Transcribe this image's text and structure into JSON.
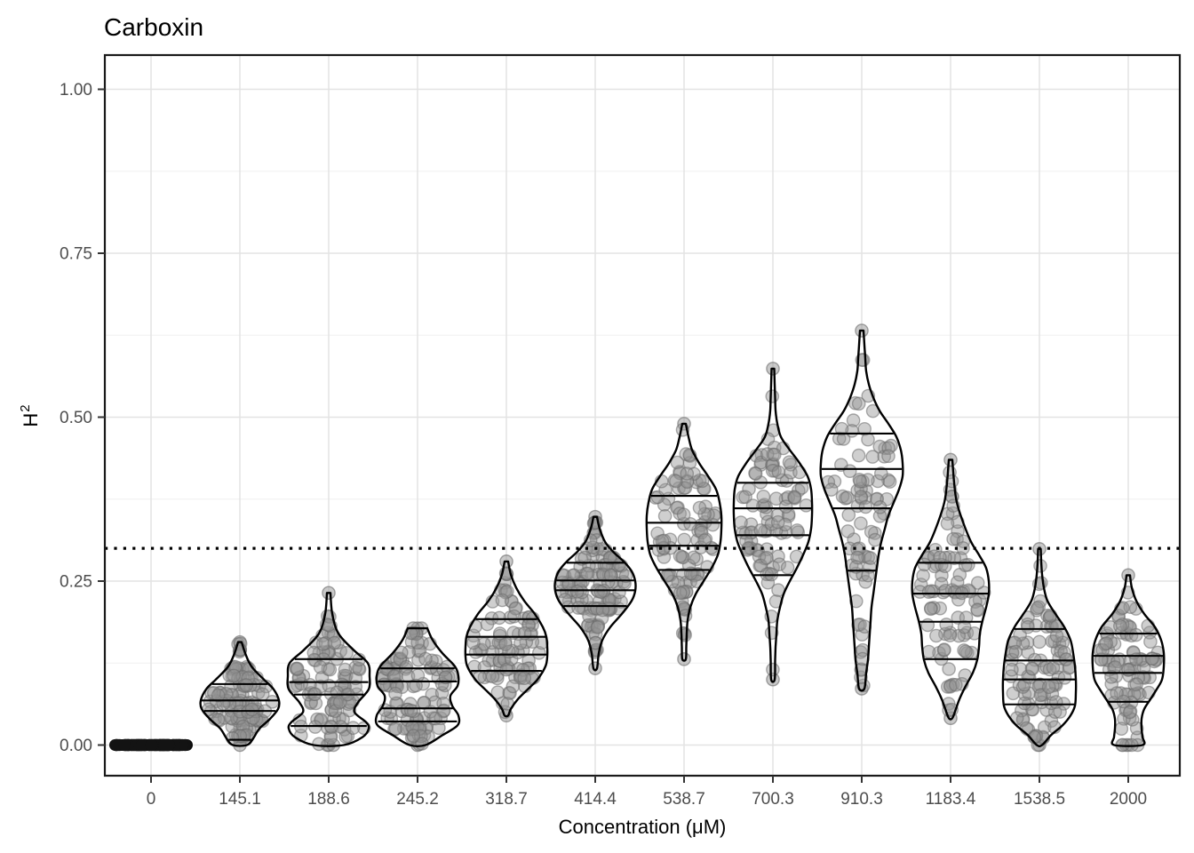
{
  "title": "Carboxin",
  "axes": {
    "x_title": "Concentration (μM)",
    "y_title": {
      "base": "H",
      "superscript": "2"
    },
    "y_ticks": [
      "0.00",
      "0.25",
      "0.50",
      "0.75",
      "1.00"
    ],
    "y_tick_values": [
      0,
      0.25,
      0.5,
      0.75,
      1.0
    ],
    "y_minor_values": [
      0.125,
      0.375,
      0.625,
      0.875
    ]
  },
  "reference_line": {
    "value": 0.3,
    "style": "dotted",
    "color": "#000000"
  },
  "colors": {
    "background": "#ffffff",
    "panel_border": "#1a1a1a",
    "grid_major": "#e3e3e3",
    "grid_minor": "#f0f0f0",
    "violin_outline": "#000000",
    "violin_fill": "#ffffff",
    "quantile_line": "#000000",
    "point_fill": "#949494",
    "point_stroke": "#6b6b6b",
    "tick_mark": "#333333",
    "tick_label": "#4d4d4d",
    "zero_group": "#0a0a0a"
  },
  "chart_data": {
    "type": "violin",
    "title": "Carboxin",
    "xlabel": "Concentration (μM)",
    "ylabel": "H^2",
    "ylim": [
      0,
      1.05
    ],
    "grid": true,
    "reference_line_y": 0.3,
    "quantiles_drawn": [
      0.2,
      0.4,
      0.6,
      0.8
    ],
    "categories": [
      "0",
      "145.1",
      "188.6",
      "245.2",
      "318.7",
      "414.4",
      "538.7",
      "700.3",
      "910.3",
      "1183.4",
      "1538.5",
      "2000"
    ],
    "violins": [
      {
        "label": "0",
        "flat": true,
        "min": 0.0,
        "max": 0.0,
        "quantiles": [
          0,
          0,
          0,
          0
        ],
        "n_points": 70,
        "profile": [
          [
            0.0,
            47
          ]
        ]
      },
      {
        "label": "145.1",
        "flat": false,
        "min": 0.0,
        "max": 0.157,
        "quantiles": [
          0.008,
          0.052,
          0.068,
          0.093
        ],
        "n_points": 115,
        "profile": [
          [
            0.0,
            8
          ],
          [
            0.01,
            15
          ],
          [
            0.025,
            22
          ],
          [
            0.04,
            34
          ],
          [
            0.055,
            43
          ],
          [
            0.068,
            44
          ],
          [
            0.085,
            38
          ],
          [
            0.1,
            27
          ],
          [
            0.12,
            13
          ],
          [
            0.14,
            6
          ],
          [
            0.157,
            2
          ]
        ]
      },
      {
        "label": "188.6",
        "flat": false,
        "min": 0.0,
        "max": 0.232,
        "quantiles": [
          0.029,
          0.077,
          0.096,
          0.131
        ],
        "n_points": 105,
        "profile": [
          [
            0.0,
            17
          ],
          [
            0.012,
            38
          ],
          [
            0.025,
            45
          ],
          [
            0.035,
            42
          ],
          [
            0.05,
            29
          ],
          [
            0.065,
            33
          ],
          [
            0.085,
            45
          ],
          [
            0.105,
            46
          ],
          [
            0.125,
            44
          ],
          [
            0.145,
            28
          ],
          [
            0.17,
            11
          ],
          [
            0.2,
            4
          ],
          [
            0.232,
            2
          ]
        ]
      },
      {
        "label": "245.2",
        "flat": false,
        "min": 0.0,
        "max": 0.178,
        "quantiles": [
          0.036,
          0.056,
          0.097,
          0.117
        ],
        "n_points": 115,
        "profile": [
          [
            0.0,
            9
          ],
          [
            0.015,
            28
          ],
          [
            0.03,
            45
          ],
          [
            0.045,
            46
          ],
          [
            0.06,
            39
          ],
          [
            0.075,
            37
          ],
          [
            0.09,
            45
          ],
          [
            0.105,
            46
          ],
          [
            0.12,
            42
          ],
          [
            0.14,
            28
          ],
          [
            0.16,
            17
          ],
          [
            0.178,
            11
          ]
        ]
      },
      {
        "label": "318.7",
        "flat": false,
        "min": 0.045,
        "max": 0.28,
        "quantiles": [
          0.113,
          0.138,
          0.165,
          0.192
        ],
        "n_points": 95,
        "profile": [
          [
            0.045,
            2
          ],
          [
            0.055,
            5
          ],
          [
            0.07,
            13
          ],
          [
            0.085,
            24
          ],
          [
            0.1,
            35
          ],
          [
            0.12,
            44
          ],
          [
            0.135,
            46
          ],
          [
            0.15,
            46
          ],
          [
            0.165,
            45
          ],
          [
            0.18,
            41
          ],
          [
            0.2,
            32
          ],
          [
            0.22,
            20
          ],
          [
            0.24,
            11
          ],
          [
            0.26,
            5
          ],
          [
            0.28,
            2
          ]
        ]
      },
      {
        "label": "414.4",
        "flat": false,
        "min": 0.117,
        "max": 0.348,
        "quantiles": [
          0.212,
          0.236,
          0.251,
          0.278
        ],
        "n_points": 125,
        "profile": [
          [
            0.117,
            2
          ],
          [
            0.14,
            4
          ],
          [
            0.16,
            8
          ],
          [
            0.18,
            17
          ],
          [
            0.2,
            30
          ],
          [
            0.22,
            41
          ],
          [
            0.235,
            45
          ],
          [
            0.25,
            45
          ],
          [
            0.265,
            41
          ],
          [
            0.28,
            32
          ],
          [
            0.295,
            20
          ],
          [
            0.31,
            11
          ],
          [
            0.33,
            5
          ],
          [
            0.348,
            2
          ]
        ]
      },
      {
        "label": "538.7",
        "flat": false,
        "min": 0.131,
        "max": 0.49,
        "quantiles": [
          0.267,
          0.304,
          0.339,
          0.38
        ],
        "n_points": 100,
        "profile": [
          [
            0.131,
            2
          ],
          [
            0.15,
            2.5
          ],
          [
            0.17,
            3
          ],
          [
            0.19,
            4
          ],
          [
            0.21,
            7
          ],
          [
            0.23,
            13
          ],
          [
            0.25,
            22
          ],
          [
            0.27,
            31
          ],
          [
            0.29,
            38
          ],
          [
            0.31,
            41
          ],
          [
            0.33,
            42
          ],
          [
            0.35,
            42
          ],
          [
            0.37,
            40
          ],
          [
            0.39,
            36
          ],
          [
            0.41,
            27
          ],
          [
            0.43,
            17
          ],
          [
            0.45,
            9
          ],
          [
            0.47,
            5
          ],
          [
            0.49,
            2
          ]
        ]
      },
      {
        "label": "700.3",
        "flat": false,
        "min": 0.1,
        "max": 0.574,
        "quantiles": [
          0.259,
          0.32,
          0.361,
          0.4
        ],
        "n_points": 95,
        "profile": [
          [
            0.1,
            2
          ],
          [
            0.13,
            2.5
          ],
          [
            0.15,
            3
          ],
          [
            0.17,
            4
          ],
          [
            0.19,
            5
          ],
          [
            0.21,
            8
          ],
          [
            0.23,
            12
          ],
          [
            0.25,
            19
          ],
          [
            0.27,
            27
          ],
          [
            0.29,
            34
          ],
          [
            0.31,
            40
          ],
          [
            0.33,
            43
          ],
          [
            0.35,
            44
          ],
          [
            0.37,
            44
          ],
          [
            0.39,
            43
          ],
          [
            0.41,
            39
          ],
          [
            0.43,
            30
          ],
          [
            0.45,
            19
          ],
          [
            0.47,
            9
          ],
          [
            0.49,
            5
          ],
          [
            0.51,
            3
          ],
          [
            0.53,
            2.5
          ],
          [
            0.55,
            2
          ],
          [
            0.574,
            1.5
          ]
        ]
      },
      {
        "label": "910.3",
        "flat": false,
        "min": 0.086,
        "max": 0.632,
        "quantiles": [
          0.266,
          0.361,
          0.421,
          0.475
        ],
        "n_points": 85,
        "profile": [
          [
            0.086,
            3
          ],
          [
            0.11,
            5
          ],
          [
            0.13,
            7
          ],
          [
            0.15,
            8
          ],
          [
            0.17,
            9
          ],
          [
            0.19,
            10
          ],
          [
            0.21,
            11
          ],
          [
            0.23,
            13
          ],
          [
            0.25,
            15
          ],
          [
            0.27,
            17
          ],
          [
            0.29,
            19
          ],
          [
            0.31,
            22
          ],
          [
            0.33,
            26
          ],
          [
            0.35,
            30
          ],
          [
            0.37,
            36
          ],
          [
            0.39,
            42
          ],
          [
            0.41,
            46
          ],
          [
            0.43,
            46
          ],
          [
            0.45,
            44
          ],
          [
            0.47,
            39
          ],
          [
            0.49,
            30
          ],
          [
            0.51,
            20
          ],
          [
            0.53,
            13
          ],
          [
            0.55,
            8
          ],
          [
            0.57,
            5
          ],
          [
            0.59,
            4
          ],
          [
            0.61,
            3
          ],
          [
            0.632,
            2
          ]
        ]
      },
      {
        "label": "1183.4",
        "flat": false,
        "min": 0.041,
        "max": 0.435,
        "quantiles": [
          0.131,
          0.188,
          0.231,
          0.278
        ],
        "n_points": 95,
        "profile": [
          [
            0.041,
            2
          ],
          [
            0.055,
            6
          ],
          [
            0.07,
            10
          ],
          [
            0.09,
            17
          ],
          [
            0.11,
            25
          ],
          [
            0.13,
            30
          ],
          [
            0.15,
            32
          ],
          [
            0.17,
            33
          ],
          [
            0.19,
            36
          ],
          [
            0.21,
            40
          ],
          [
            0.23,
            43
          ],
          [
            0.25,
            43
          ],
          [
            0.27,
            40
          ],
          [
            0.29,
            32
          ],
          [
            0.31,
            23
          ],
          [
            0.34,
            14
          ],
          [
            0.37,
            7
          ],
          [
            0.4,
            4
          ],
          [
            0.435,
            2
          ]
        ]
      },
      {
        "label": "1538.5",
        "flat": false,
        "min": 0.0,
        "max": 0.299,
        "quantiles": [
          0.062,
          0.1,
          0.129,
          0.177
        ],
        "n_points": 105,
        "profile": [
          [
            0.0,
            3
          ],
          [
            0.015,
            13
          ],
          [
            0.03,
            26
          ],
          [
            0.045,
            35
          ],
          [
            0.06,
            40
          ],
          [
            0.08,
            41
          ],
          [
            0.1,
            41
          ],
          [
            0.12,
            40
          ],
          [
            0.14,
            38
          ],
          [
            0.16,
            35
          ],
          [
            0.18,
            28
          ],
          [
            0.2,
            18
          ],
          [
            0.22,
            9
          ],
          [
            0.24,
            5
          ],
          [
            0.26,
            3
          ],
          [
            0.28,
            2
          ],
          [
            0.299,
            1.5
          ]
        ]
      },
      {
        "label": "2000",
        "flat": false,
        "min": 0.0,
        "max": 0.259,
        "quantiles": [
          0.066,
          0.11,
          0.136,
          0.17
        ],
        "n_points": 95,
        "profile": [
          [
            0.0,
            16
          ],
          [
            0.012,
            16
          ],
          [
            0.025,
            15
          ],
          [
            0.04,
            15
          ],
          [
            0.055,
            18
          ],
          [
            0.07,
            25
          ],
          [
            0.085,
            32
          ],
          [
            0.1,
            38
          ],
          [
            0.12,
            40
          ],
          [
            0.14,
            40
          ],
          [
            0.16,
            37
          ],
          [
            0.18,
            30
          ],
          [
            0.2,
            18
          ],
          [
            0.22,
            9
          ],
          [
            0.24,
            4
          ],
          [
            0.259,
            2
          ]
        ]
      }
    ]
  }
}
